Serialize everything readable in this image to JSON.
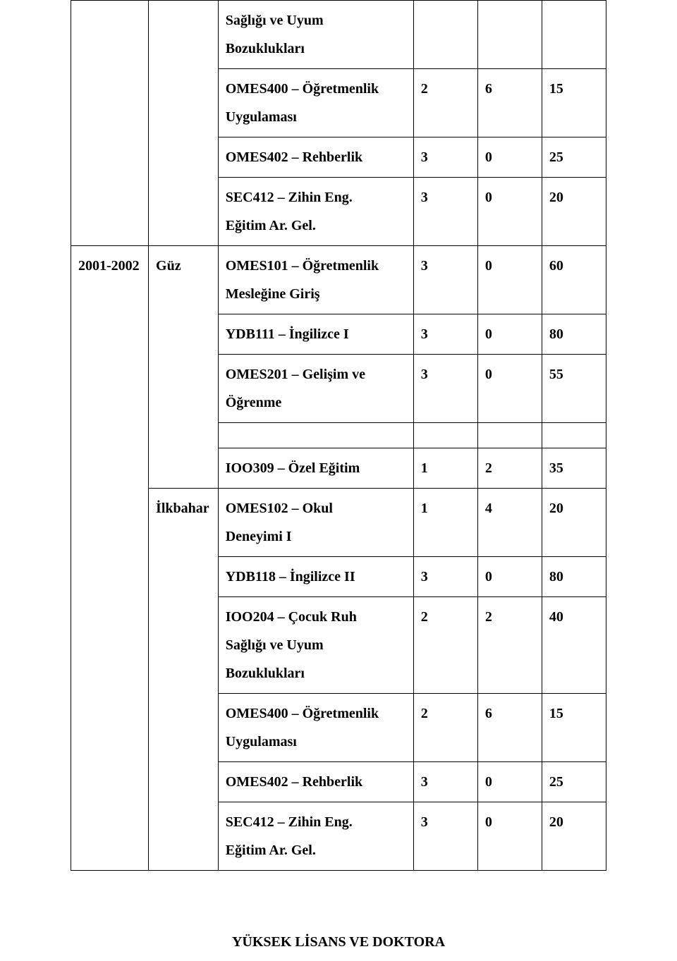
{
  "table": {
    "columns": {
      "year_w_pct": 14.5,
      "sem_w_pct": 13,
      "course_w_pct": 36.5,
      "n1_w_pct": 12,
      "n2_w_pct": 12,
      "n3_w_pct": 12
    },
    "border_color": "#000000",
    "font_family": "Times New Roman",
    "font_size_pt": 15,
    "line_height": 2.0,
    "background_color": "#ffffff",
    "text_color": "#000000"
  },
  "block1": {
    "year": "",
    "semester": "",
    "rows": [
      {
        "course_line1": "Sağlığı ve Uyum",
        "course_line2": "Bozuklukları",
        "n1": "",
        "n2": "",
        "n3": ""
      },
      {
        "course_line1": "OMES400 – Öğretmenlik",
        "course_line2": "Uygulaması",
        "n1": "2",
        "n2": "6",
        "n3": "15"
      },
      {
        "course_line1": "OMES402 – Rehberlik",
        "n1": "3",
        "n2": "0",
        "n3": "25"
      },
      {
        "course_line1": "SEC412 – Zihin Eng.",
        "course_line2": "Eğitim Ar. Gel.",
        "n1": "3",
        "n2": "0",
        "n3": "20"
      }
    ]
  },
  "block2": {
    "year": "2001-2002",
    "semesters": {
      "guz": {
        "label": "Güz",
        "rows_a": [
          {
            "course_line1": "OMES101 – Öğretmenlik",
            "course_line2": "Mesleğine Giriş",
            "n1": "3",
            "n2": "0",
            "n3": "60"
          },
          {
            "course_line1": "YDB111 – İngilizce I",
            "n1": "3",
            "n2": "0",
            "n3": "80"
          },
          {
            "course_line1": "OMES201 – Gelişim ve",
            "course_line2": "Öğrenme",
            "n1": "3",
            "n2": "0",
            "n3": "55"
          }
        ],
        "rows_b": [
          {
            "course_line1": "IOO309 – Özel Eğitim",
            "n1": "1",
            "n2": "2",
            "n3": "35"
          }
        ]
      },
      "ilkbahar": {
        "label": "İlkbahar",
        "rows": [
          {
            "course_line1": "OMES102 – Okul",
            "course_line2": "Deneyimi I",
            "n1": "1",
            "n2": "4",
            "n3": "20"
          },
          {
            "course_line1": "YDB118 – İngilizce II",
            "n1": "3",
            "n2": "0",
            "n3": "80"
          },
          {
            "course_line1": "IOO204 – Çocuk Ruh",
            "course_line2": "Sağlığı ve Uyum",
            "course_line3": "Bozuklukları",
            "n1": "2",
            "n2": "2",
            "n3": "40"
          },
          {
            "course_line1": "OMES400 – Öğretmenlik",
            "course_line2": "Uygulaması",
            "n1": "2",
            "n2": "6",
            "n3": "15"
          },
          {
            "course_line1": "OMES402 – Rehberlik",
            "n1": "3",
            "n2": "0",
            "n3": "25"
          },
          {
            "course_line1": "SEC412 – Zihin Eng.",
            "course_line2": "Eğitim Ar. Gel.",
            "n1": "3",
            "n2": "0",
            "n3": "20"
          }
        ]
      }
    }
  },
  "footer_heading": "YÜKSEK LİSANS VE DOKTORA"
}
